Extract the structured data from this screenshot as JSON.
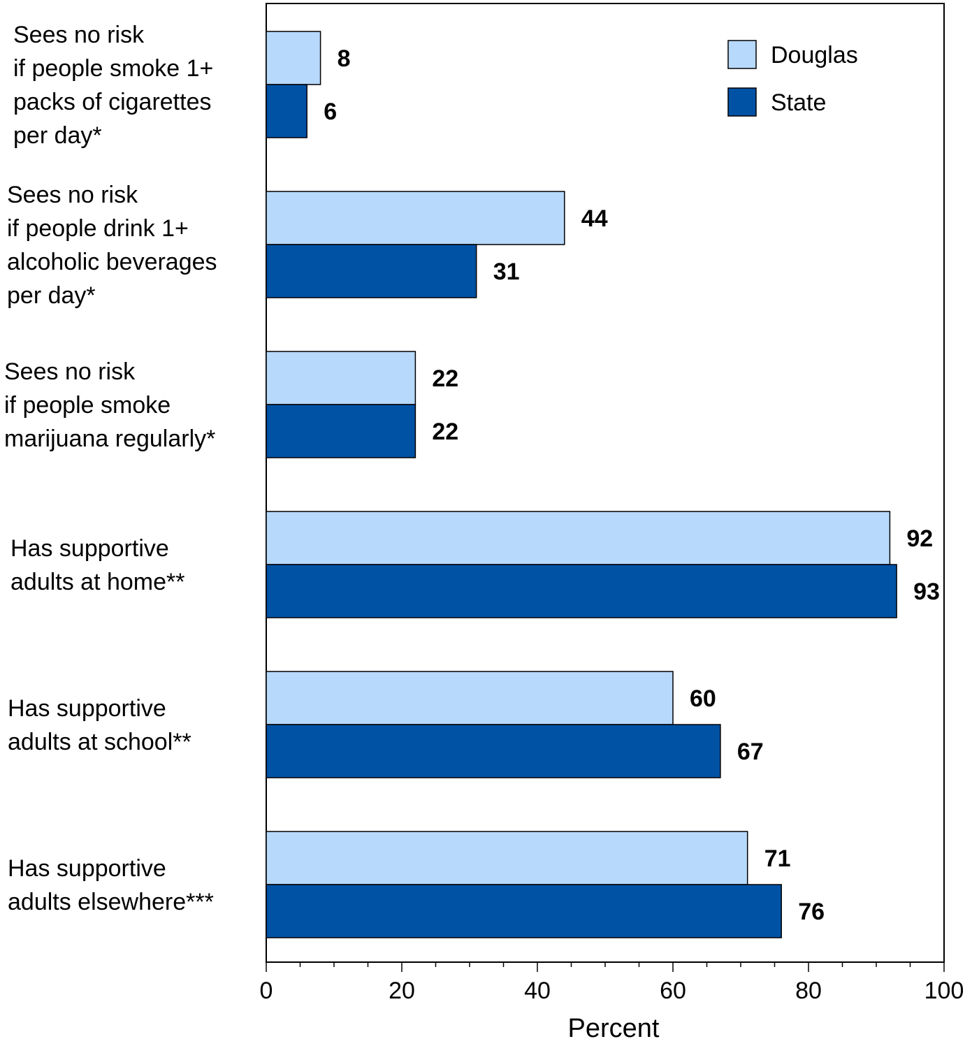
{
  "chart_data": {
    "type": "bar",
    "orientation": "horizontal",
    "title": "",
    "xlabel": "Percent",
    "ylabel": "",
    "xlim": [
      0,
      100
    ],
    "xticks": [
      0,
      20,
      40,
      60,
      80,
      100
    ],
    "legend_position": "top-right",
    "grid": false,
    "categories": [
      [
        "Sees no risk",
        "if people smoke 1+",
        "packs of cigarettes",
        "per day*"
      ],
      [
        "Sees no risk",
        "if people drink 1+",
        "alcoholic beverages",
        "per day*"
      ],
      [
        "Sees no risk",
        "if people smoke",
        "marijuana regularly*"
      ],
      [
        "Has supportive",
        "adults at home**"
      ],
      [
        "Has supportive",
        "adults at school**"
      ],
      [
        "Has supportive",
        "adults elsewhere***"
      ]
    ],
    "series": [
      {
        "name": "Douglas",
        "color": "#b7d9fb",
        "values": [
          8,
          44,
          22,
          92,
          60,
          71
        ]
      },
      {
        "name": "State",
        "color": "#0052a5",
        "values": [
          6,
          31,
          22,
          93,
          67,
          76
        ]
      }
    ]
  }
}
